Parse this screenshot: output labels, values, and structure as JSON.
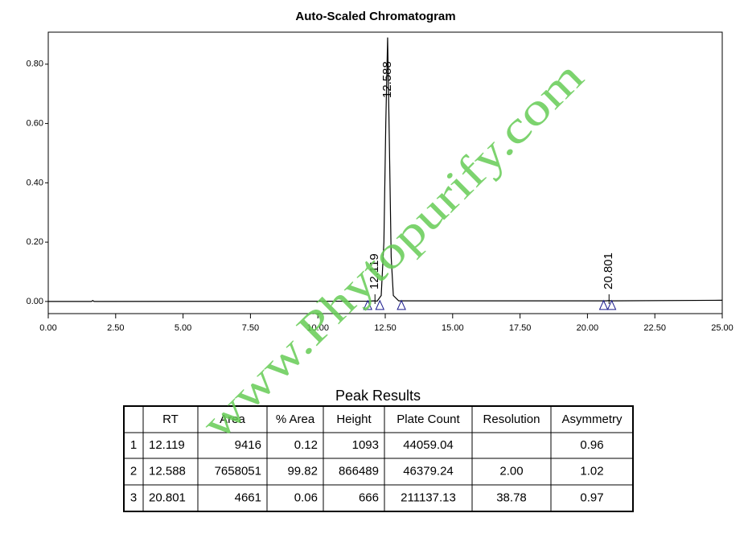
{
  "chart_data": {
    "type": "line",
    "title": "Auto-Scaled Chromatogram",
    "x": [
      0,
      1.6,
      1.65,
      1.7,
      11.9,
      12.1,
      12.2,
      12.35,
      12.45,
      12.52,
      12.588,
      12.65,
      12.72,
      12.8,
      13.0,
      20.7,
      20.8,
      20.9,
      25
    ],
    "series": [
      {
        "color": "#000000",
        "values": [
          0,
          0,
          0.003,
          0,
          0.001,
          0.002,
          0.001,
          0.02,
          0.2,
          0.6,
          0.89,
          0.55,
          0.15,
          0.02,
          0.002,
          0.002,
          0.003,
          0.002,
          0.004
        ]
      }
    ],
    "xlim": [
      0,
      25
    ],
    "ylim": [
      -0.041,
      0.908
    ],
    "xticks": [
      {
        "value": 0,
        "label": "0.00"
      },
      {
        "value": 2.5,
        "label": "2.50"
      },
      {
        "value": 5,
        "label": "5.00"
      },
      {
        "value": 7.5,
        "label": "7.50"
      },
      {
        "value": 10,
        "label": "10.00"
      },
      {
        "value": 12.5,
        "label": "12.50"
      },
      {
        "value": 15,
        "label": "15.00"
      },
      {
        "value": 17.5,
        "label": "17.50"
      },
      {
        "value": 20,
        "label": "20.00"
      },
      {
        "value": 22.5,
        "label": "22.50"
      },
      {
        "value": 25,
        "label": "25.00"
      }
    ],
    "yticks": [
      {
        "value": 0,
        "label": "0.00"
      },
      {
        "value": 0.2,
        "label": "0.20"
      },
      {
        "value": 0.4,
        "label": "0.40"
      },
      {
        "value": 0.6,
        "label": "0.60"
      },
      {
        "value": 0.8,
        "label": "0.80"
      }
    ],
    "peak_labels": [
      {
        "x": 12.119,
        "label": "12.119"
      },
      {
        "x": 12.588,
        "label": "12.588"
      },
      {
        "x": 20.801,
        "label": "20.801"
      }
    ],
    "baseline_markers": [
      11.85,
      12.3,
      13.1,
      20.6,
      20.9
    ],
    "marker_color": "#1a1a8c",
    "watermark": "www.Phytopurify.com"
  },
  "table": {
    "title": "Peak Results",
    "header": [
      "",
      "RT",
      "Area",
      "% Area",
      "Height",
      "Plate Count",
      "Resolution",
      "Asymmetry"
    ],
    "rows": [
      [
        "1",
        "12.119",
        "9416",
        "0.12",
        "1093",
        "44059.04",
        null,
        "0.96"
      ],
      [
        "2",
        "12.588",
        "7658051",
        "99.82",
        "866489",
        "46379.24",
        "2.00",
        "1.02"
      ],
      [
        "3",
        "20.801",
        "4661",
        "0.06",
        "666",
        "211137.13",
        "38.78",
        "0.97"
      ]
    ]
  }
}
